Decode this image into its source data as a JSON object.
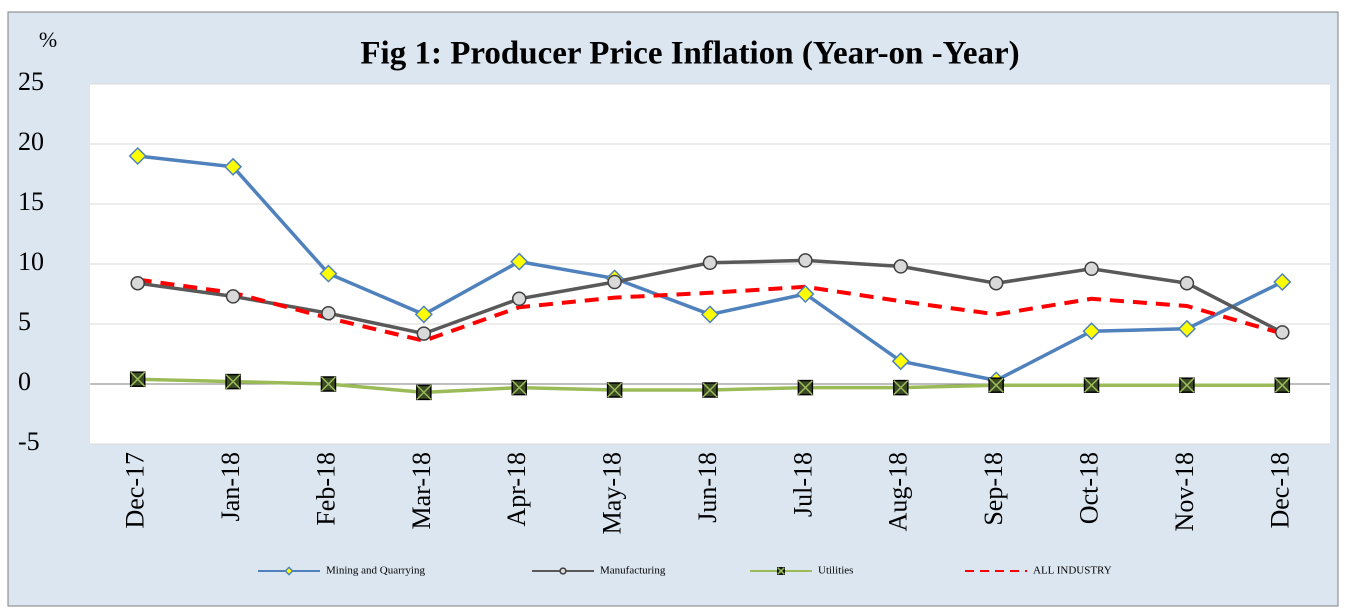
{
  "chart_data": {
    "type": "line",
    "title": "Fig 1: Producer Price Inflation (Year-on -Year)",
    "y_label": "%",
    "categories": [
      "Dec-17",
      "Jan-18",
      "Feb-18",
      "Mar-18",
      "Apr-18",
      "May-18",
      "Jun-18",
      "Jul-18",
      "Aug-18",
      "Sep-18",
      "Oct-18",
      "Nov-18",
      "Dec-18"
    ],
    "series": [
      {
        "name": "Mining and Quarrying",
        "color": "#4f81bd",
        "marker": "diamond",
        "marker_fill": "#ffff00",
        "dashed": false,
        "values": [
          19.0,
          18.1,
          9.2,
          5.8,
          10.2,
          8.8,
          5.8,
          7.5,
          1.9,
          0.3,
          4.4,
          4.6,
          8.5
        ]
      },
      {
        "name": "Manufacturing",
        "color": "#595959",
        "marker": "circle",
        "marker_fill": "#d9d9d9",
        "dashed": false,
        "values": [
          8.4,
          7.3,
          5.9,
          4.2,
          7.1,
          8.5,
          10.1,
          10.3,
          9.8,
          8.4,
          9.6,
          8.4,
          4.3
        ]
      },
      {
        "name": "Utilities",
        "color": "#9bbb59",
        "marker": "square-x",
        "marker_fill": "#3b4a24",
        "dashed": false,
        "values": [
          0.4,
          0.2,
          0.0,
          -0.7,
          -0.3,
          -0.5,
          -0.5,
          -0.3,
          -0.3,
          -0.1,
          -0.1,
          -0.1,
          -0.1
        ]
      },
      {
        "name": "ALL INDUSTRY",
        "color": "#ff0000",
        "marker": "none",
        "dashed": true,
        "values": [
          8.7,
          7.6,
          5.5,
          3.6,
          6.4,
          7.2,
          7.6,
          8.1,
          6.9,
          5.8,
          7.1,
          6.5,
          4.2
        ]
      }
    ],
    "ylim": [
      -5,
      25
    ],
    "yticks": [
      -5,
      0,
      5,
      10,
      15,
      20,
      25
    ],
    "grid": true
  }
}
